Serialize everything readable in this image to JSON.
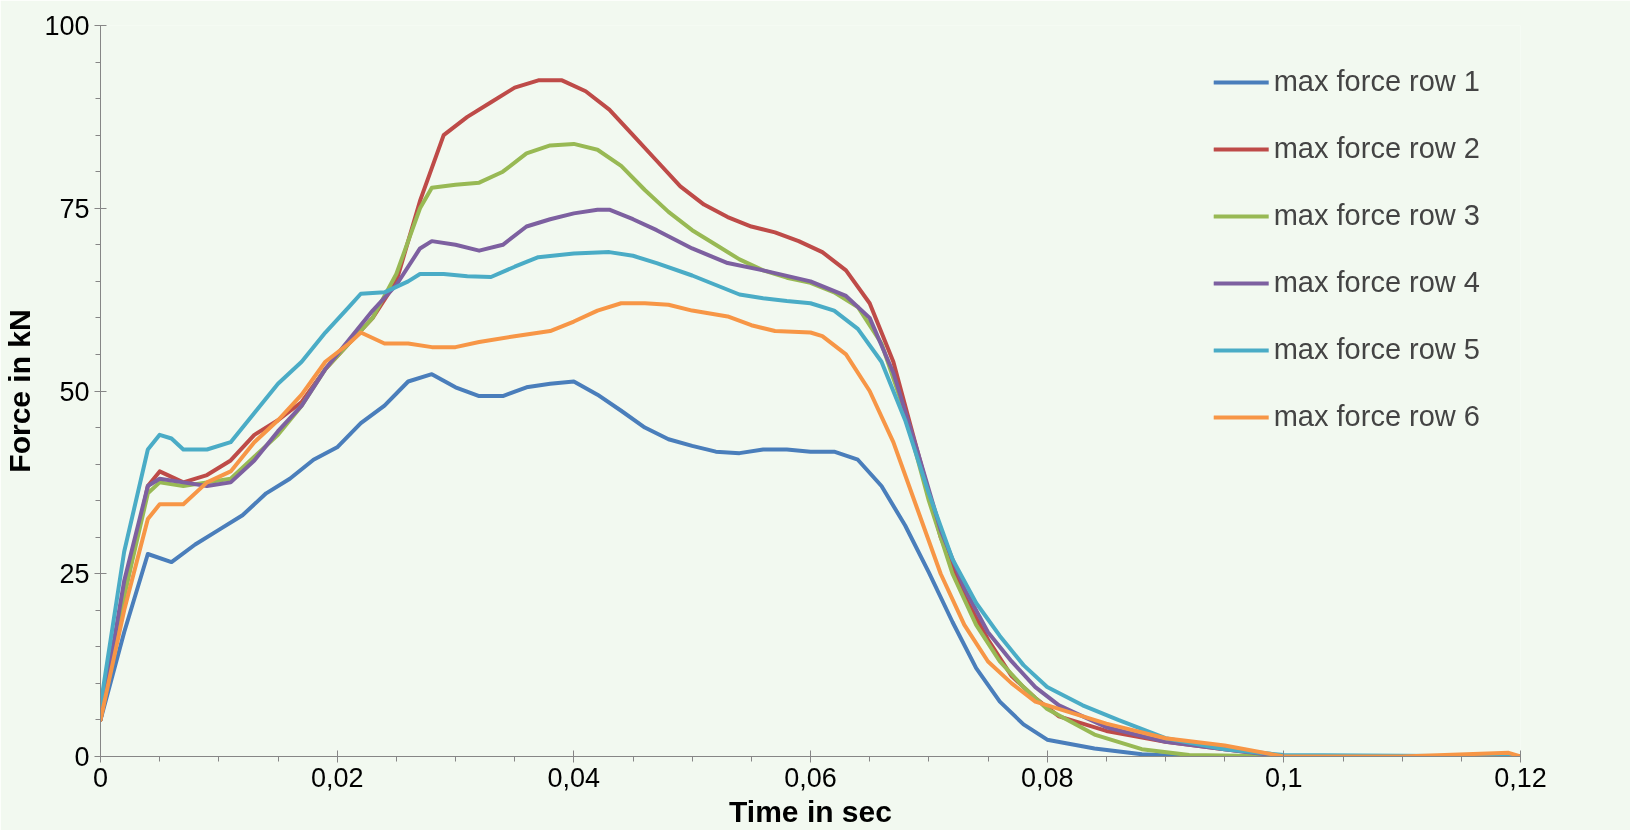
{
  "chart_data": {
    "type": "line",
    "xlabel": "Time in sec",
    "ylabel": "Force in kN",
    "xlim": [
      0,
      0.12
    ],
    "ylim": [
      0,
      100
    ],
    "xticks": [
      0,
      {
        "value": 0.02,
        "label": "0,02"
      },
      {
        "value": 0.04,
        "label": "0,04"
      },
      {
        "value": 0.06,
        "label": "0,06"
      },
      {
        "value": 0.08,
        "label": "0,08"
      },
      {
        "value": 0.1,
        "label": "0,1"
      },
      {
        "value": 0.12,
        "label": "0,12"
      }
    ],
    "yticks": [
      0,
      25,
      50,
      75,
      100
    ],
    "grid": false,
    "legend": "top right",
    "marker": "none",
    "line_style": "solid",
    "series": [
      {
        "name": "max force row 1",
        "color": "#4a7ebb",
        "x": [
          0,
          0.002,
          0.004,
          0.006,
          0.008,
          0.01,
          0.012,
          0.014,
          0.016,
          0.018,
          0.02,
          0.022,
          0.024,
          0.026,
          0.028,
          0.03,
          0.032,
          0.034,
          0.036,
          0.038,
          0.04,
          0.042,
          0.044,
          0.046,
          0.048,
          0.05,
          0.052,
          0.054,
          0.056,
          0.058,
          0.06,
          0.062,
          0.064,
          0.066,
          0.068,
          0.07,
          0.072,
          0.074,
          0.076,
          0.078,
          0.08,
          0.084,
          0.088,
          0.092,
          0.1,
          0.12
        ],
        "values": [
          5,
          17,
          27.7,
          26.6,
          29,
          31,
          33,
          36,
          38,
          40.6,
          42.3,
          45.6,
          48,
          51.3,
          52.3,
          50.5,
          49.3,
          49.3,
          50.5,
          51,
          51.3,
          49.5,
          47.3,
          45,
          43.4,
          42.5,
          41.7,
          41.5,
          42,
          42,
          41.7,
          41.7,
          40.6,
          37,
          31.6,
          25.2,
          18.4,
          12.1,
          7.5,
          4.4,
          2.3,
          1.1,
          0.3,
          0,
          0,
          0
        ]
      },
      {
        "name": "max force row 2",
        "color": "#be4b48",
        "x": [
          0,
          0.002,
          0.004,
          0.005,
          0.007,
          0.009,
          0.011,
          0.013,
          0.015,
          0.017,
          0.019,
          0.021,
          0.023,
          0.025,
          0.027,
          0.029,
          0.031,
          0.033,
          0.035,
          0.037,
          0.039,
          0.041,
          0.043,
          0.045,
          0.047,
          0.049,
          0.051,
          0.053,
          0.055,
          0.057,
          0.059,
          0.061,
          0.063,
          0.065,
          0.067,
          0.069,
          0.071,
          0.073,
          0.075,
          0.077,
          0.079,
          0.081,
          0.085,
          0.09,
          0.095,
          0.1,
          0.12
        ],
        "values": [
          5,
          22,
          37,
          39,
          37.5,
          38.5,
          40.5,
          44,
          46,
          48.5,
          53,
          56.5,
          60,
          65,
          76,
          85,
          87.5,
          89.5,
          91.5,
          92.5,
          92.5,
          91,
          88.5,
          85,
          81.5,
          78,
          75.5,
          73.8,
          72.5,
          71.7,
          70.5,
          69,
          66.5,
          62,
          54,
          42,
          30,
          22,
          16,
          11,
          8,
          5.5,
          3.5,
          2,
          1,
          0,
          0
        ]
      },
      {
        "name": "max force row 3",
        "color": "#98b954",
        "x": [
          0,
          0.002,
          0.004,
          0.005,
          0.007,
          0.009,
          0.011,
          0.013,
          0.015,
          0.017,
          0.019,
          0.021,
          0.023,
          0.025,
          0.027,
          0.028,
          0.03,
          0.032,
          0.034,
          0.036,
          0.038,
          0.04,
          0.042,
          0.044,
          0.046,
          0.048,
          0.05,
          0.052,
          0.054,
          0.056,
          0.058,
          0.06,
          0.062,
          0.064,
          0.066,
          0.068,
          0.07,
          0.072,
          0.074,
          0.076,
          0.078,
          0.08,
          0.084,
          0.088,
          0.092,
          0.1,
          0.12
        ],
        "values": [
          5,
          22,
          36,
          37.5,
          37,
          37.5,
          38,
          41,
          44,
          48,
          53,
          56.5,
          60,
          66,
          75,
          77.8,
          78.2,
          78.5,
          80,
          82.5,
          83.6,
          83.8,
          83,
          80.8,
          77.5,
          74.5,
          72,
          70,
          68,
          66.5,
          65.5,
          64.8,
          63.5,
          61.5,
          56.5,
          47,
          35,
          25,
          18,
          13,
          9.5,
          6.5,
          3,
          1,
          0.2,
          0,
          0
        ]
      },
      {
        "name": "max force row 4",
        "color": "#7d60a0",
        "x": [
          0,
          0.002,
          0.004,
          0.005,
          0.007,
          0.009,
          0.011,
          0.013,
          0.015,
          0.017,
          0.019,
          0.021,
          0.023,
          0.025,
          0.027,
          0.028,
          0.03,
          0.032,
          0.034,
          0.036,
          0.038,
          0.04,
          0.042,
          0.043,
          0.045,
          0.047,
          0.05,
          0.053,
          0.056,
          0.06,
          0.063,
          0.065,
          0.067,
          0.069,
          0.071,
          0.073,
          0.075,
          0.077,
          0.079,
          0.081,
          0.085,
          0.09,
          0.095,
          0.1,
          0.12
        ],
        "values": [
          5,
          24,
          37,
          38,
          37.5,
          37,
          37.5,
          40.5,
          44.5,
          48,
          53,
          57,
          61,
          64.5,
          69.5,
          70.5,
          70,
          69.2,
          70,
          72.5,
          73.5,
          74.3,
          74.8,
          74.8,
          73.5,
          72,
          69.5,
          67.5,
          66.5,
          65,
          63,
          60,
          52.5,
          42,
          31,
          23,
          17,
          13,
          9.5,
          7,
          4,
          2,
          1,
          0,
          0
        ]
      },
      {
        "name": "max force row 5",
        "color": "#4aacc6",
        "x": [
          0,
          0.002,
          0.004,
          0.005,
          0.006,
          0.007,
          0.009,
          0.011,
          0.013,
          0.015,
          0.017,
          0.019,
          0.021,
          0.022,
          0.024,
          0.026,
          0.027,
          0.029,
          0.031,
          0.033,
          0.035,
          0.037,
          0.04,
          0.043,
          0.045,
          0.047,
          0.05,
          0.052,
          0.054,
          0.056,
          0.058,
          0.06,
          0.062,
          0.064,
          0.066,
          0.068,
          0.07,
          0.072,
          0.074,
          0.076,
          0.078,
          0.08,
          0.083,
          0.086,
          0.09,
          0.095,
          0.1,
          0.12
        ],
        "values": [
          7,
          28,
          42,
          44,
          43.5,
          42,
          42,
          43,
          47,
          51,
          54,
          58,
          61.5,
          63.3,
          63.5,
          65,
          66,
          66,
          65.7,
          65.6,
          67,
          68.3,
          68.8,
          69,
          68.5,
          67.5,
          65.8,
          64.5,
          63.2,
          62.7,
          62.3,
          62,
          61,
          58.5,
          54,
          46,
          36,
          27,
          21,
          16.5,
          12.5,
          9.5,
          7,
          5,
          2.5,
          1,
          0.2,
          0
        ]
      },
      {
        "name": "max force row 6",
        "color": "#f79646",
        "x": [
          0,
          0.002,
          0.004,
          0.005,
          0.007,
          0.009,
          0.011,
          0.013,
          0.015,
          0.017,
          0.019,
          0.021,
          0.022,
          0.024,
          0.026,
          0.028,
          0.03,
          0.032,
          0.035,
          0.038,
          0.04,
          0.042,
          0.044,
          0.046,
          0.048,
          0.05,
          0.053,
          0.055,
          0.057,
          0.06,
          0.061,
          0.063,
          0.065,
          0.067,
          0.069,
          0.071,
          0.073,
          0.075,
          0.077,
          0.079,
          0.082,
          0.085,
          0.09,
          0.095,
          0.1,
          0.11,
          0.119,
          0.12
        ],
        "values": [
          5,
          20,
          32.5,
          34.5,
          34.5,
          37.5,
          39,
          43,
          46,
          49.5,
          54,
          56.5,
          58,
          56.5,
          56.5,
          56,
          56,
          56.7,
          57.5,
          58.2,
          59.5,
          61,
          62,
          62,
          61.8,
          61,
          60.2,
          59,
          58.2,
          58,
          57.5,
          55,
          50,
          43,
          34,
          25,
          18,
          13,
          10,
          7.5,
          6,
          4.5,
          2.5,
          1.5,
          0,
          0,
          0.5,
          0
        ]
      }
    ]
  }
}
